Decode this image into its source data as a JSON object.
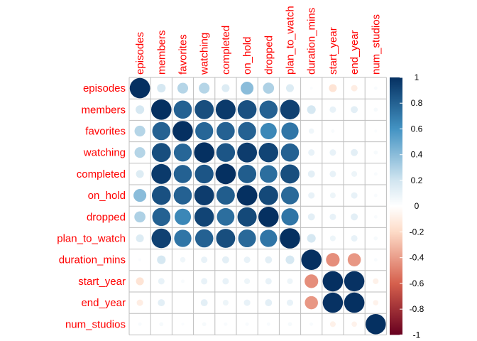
{
  "chart_data": {
    "type": "heatmap",
    "subtype": "correlation-circle-matrix",
    "variables": [
      "episodes",
      "members",
      "favorites",
      "watching",
      "completed",
      "on_hold",
      "dropped",
      "plan_to_watch",
      "duration_mins",
      "start_year",
      "end_year",
      "num_studios"
    ],
    "matrix": [
      [
        1.0,
        0.18,
        0.28,
        0.28,
        0.15,
        0.4,
        0.3,
        0.15,
        0.02,
        -0.15,
        -0.1,
        0.03
      ],
      [
        0.18,
        1.0,
        0.8,
        0.88,
        0.96,
        0.87,
        0.8,
        0.93,
        0.18,
        0.1,
        0.12,
        0.04
      ],
      [
        0.28,
        0.8,
        1.0,
        0.78,
        0.8,
        0.8,
        0.65,
        0.72,
        0.07,
        0.03,
        0.0,
        0.02
      ],
      [
        0.28,
        0.88,
        0.78,
        1.0,
        0.85,
        0.95,
        0.92,
        0.8,
        0.1,
        0.1,
        0.12,
        0.04
      ],
      [
        0.15,
        0.96,
        0.8,
        0.85,
        1.0,
        0.82,
        0.75,
        0.88,
        0.12,
        0.1,
        0.08,
        0.03
      ],
      [
        0.4,
        0.87,
        0.8,
        0.95,
        0.82,
        1.0,
        0.9,
        0.77,
        0.1,
        0.08,
        0.1,
        0.03
      ],
      [
        0.3,
        0.8,
        0.65,
        0.92,
        0.75,
        0.9,
        1.0,
        0.72,
        0.12,
        0.1,
        0.12,
        0.03
      ],
      [
        0.15,
        0.93,
        0.72,
        0.8,
        0.88,
        0.77,
        0.72,
        1.0,
        0.18,
        0.08,
        0.1,
        0.04
      ],
      [
        0.02,
        0.18,
        0.07,
        0.1,
        0.12,
        0.1,
        0.12,
        0.18,
        1.0,
        -0.45,
        -0.42,
        0.03
      ],
      [
        -0.15,
        0.1,
        0.03,
        0.1,
        0.1,
        0.08,
        0.1,
        0.08,
        -0.45,
        1.0,
        0.99,
        -0.08
      ],
      [
        -0.1,
        0.12,
        0.0,
        0.12,
        0.08,
        0.1,
        0.12,
        0.1,
        -0.42,
        0.99,
        1.0,
        -0.07
      ],
      [
        0.03,
        0.04,
        0.02,
        0.04,
        0.03,
        0.03,
        0.03,
        0.04,
        0.03,
        -0.08,
        -0.07,
        1.0
      ]
    ],
    "colorbar": {
      "range": [
        -1,
        1
      ],
      "ticks": [
        "1",
        "0.8",
        "0.6",
        "0.4",
        "0.2",
        "0",
        "-0.2",
        "-0.4",
        "-0.6",
        "-0.8",
        "-1"
      ],
      "stops": [
        {
          "v": -1,
          "c": "#67001f"
        },
        {
          "v": -0.6,
          "c": "#d6604d"
        },
        {
          "v": -0.2,
          "c": "#fddbc7"
        },
        {
          "v": 0,
          "c": "#ffffff"
        },
        {
          "v": 0.2,
          "c": "#d1e5f0"
        },
        {
          "v": 0.6,
          "c": "#4393c3"
        },
        {
          "v": 1,
          "c": "#053061"
        }
      ]
    },
    "label_color": "#ff0000",
    "grid_color": "#bebebe",
    "grid": true,
    "legend": "right"
  }
}
